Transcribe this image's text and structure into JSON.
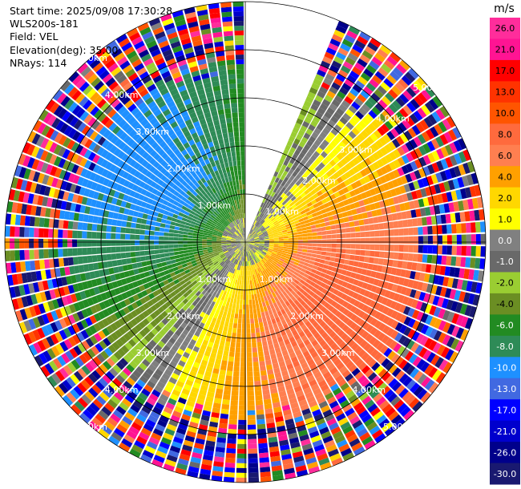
{
  "info": {
    "start_time": "Start time: 2025/09/08 17:30:28",
    "instrument": "WLS200s-181",
    "field": "Field: VEL",
    "elevation": "Elevation(deg): 35.00",
    "nrays": "NRays: 114"
  },
  "chart_data": {
    "type": "heatmap",
    "projection": "polar (PPI)",
    "field": "VEL",
    "elevation_deg": 35.0,
    "n_rays": 114,
    "max_range_km": 5.0,
    "range_ring_labels": [
      "1.00km",
      "2.00km",
      "3.00km",
      "4.00km",
      "5.00km"
    ],
    "missing_sector_deg": [
      0,
      23
    ],
    "colorbar": {
      "title": "m/s",
      "ticks": [
        "26.0",
        "21.0",
        "17.0",
        "13.0",
        "10.0",
        "8.0",
        "6.0",
        "4.0",
        "2.0",
        "1.0",
        "0.0",
        "-1.0",
        "-2.0",
        "-4.0",
        "-6.0",
        "-8.0",
        "-10.0",
        "-13.0",
        "-17.0",
        "-21.0",
        "-26.0",
        "-30.0"
      ],
      "colors": [
        "#ff2d9b",
        "#ff1493",
        "#ff0000",
        "#ff3300",
        "#ff5500",
        "#ff6a3d",
        "#ff7f50",
        "#ffa000",
        "#ffd700",
        "#ffff00",
        "#808080",
        "#696969",
        "#9acd32",
        "#6b8e23",
        "#228b22",
        "#2e8b57",
        "#1e90ff",
        "#4169e1",
        "#0000ff",
        "#0000cd",
        "#00008b",
        "#191970"
      ]
    }
  }
}
